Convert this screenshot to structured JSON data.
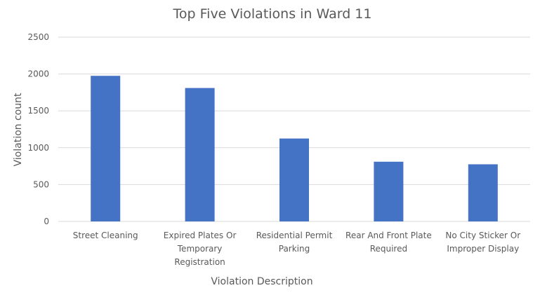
{
  "chart_data": {
    "type": "bar",
    "title": "Top Five Violations in Ward 11",
    "xlabel": "Violation Description",
    "ylabel": "Violation count",
    "categories": [
      [
        "Street Cleaning"
      ],
      [
        "Expired Plates Or",
        "Temporary",
        "Registration"
      ],
      [
        "Residential Permit",
        "Parking"
      ],
      [
        "Rear And Front Plate",
        "Required"
      ],
      [
        "No City Sticker Or",
        "Improper Display"
      ]
    ],
    "values": [
      1975,
      1810,
      1125,
      810,
      775
    ],
    "ylim": [
      0,
      2500
    ],
    "yticks": [
      "0",
      "500",
      "1000",
      "1500",
      "2000",
      "2500"
    ],
    "grid": true,
    "legend": "none",
    "bar_color": "#4472c4"
  }
}
